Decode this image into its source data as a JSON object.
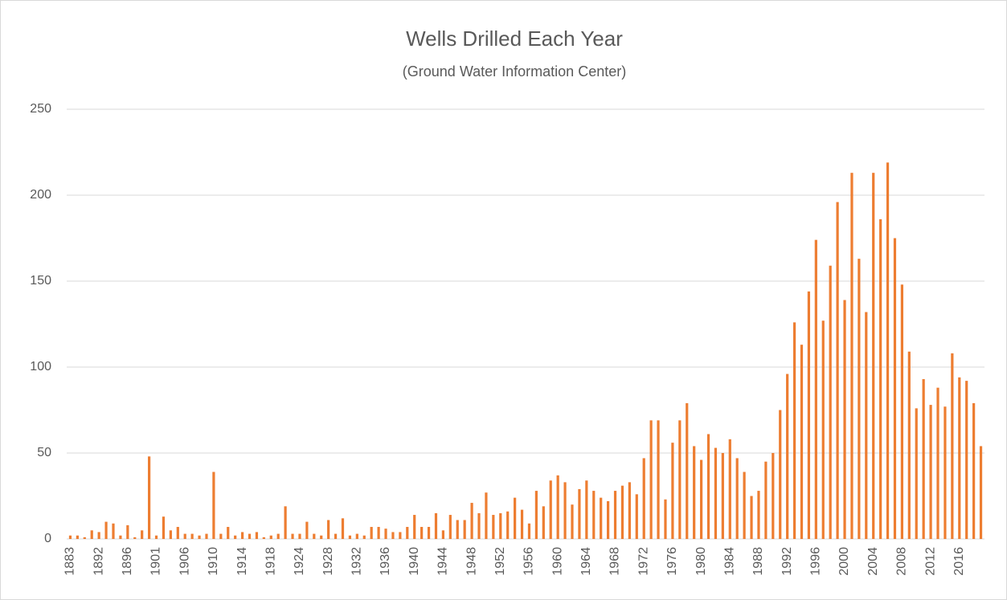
{
  "chart_data": {
    "type": "bar",
    "title": "Wells Drilled Each Year",
    "subtitle": "(Ground Water Information Center)",
    "categories": [
      "1883",
      null,
      null,
      null,
      "1892",
      null,
      null,
      null,
      "1896",
      null,
      null,
      null,
      "1901",
      null,
      null,
      null,
      "1906",
      null,
      null,
      null,
      "1910",
      null,
      null,
      null,
      "1914",
      null,
      null,
      null,
      "1918",
      null,
      null,
      null,
      "1924",
      null,
      null,
      null,
      "1928",
      null,
      null,
      null,
      "1932",
      null,
      null,
      null,
      "1936",
      null,
      null,
      null,
      "1940",
      null,
      null,
      null,
      "1944",
      null,
      null,
      null,
      "1948",
      null,
      null,
      null,
      "1952",
      null,
      null,
      null,
      "1956",
      null,
      null,
      null,
      "1960",
      null,
      null,
      null,
      "1964",
      null,
      null,
      null,
      "1968",
      null,
      null,
      null,
      "1972",
      null,
      null,
      null,
      "1976",
      null,
      null,
      null,
      "1980",
      null,
      null,
      null,
      "1984",
      null,
      null,
      null,
      "1988",
      null,
      null,
      null,
      "1992",
      null,
      null,
      null,
      "1996",
      null,
      null,
      null,
      "2000",
      null,
      null,
      null,
      "2004",
      null,
      null,
      null,
      "2008",
      null,
      null,
      null,
      "2012",
      null,
      null,
      null,
      "2016",
      null,
      null,
      null
    ],
    "values": [
      2,
      2,
      1,
      5,
      4,
      10,
      9,
      2,
      8,
      1,
      5,
      48,
      2,
      13,
      5,
      7,
      3,
      3,
      2,
      3,
      39,
      3,
      7,
      2,
      4,
      3,
      4,
      1,
      2,
      3,
      19,
      3,
      3,
      10,
      3,
      2,
      11,
      3,
      12,
      2,
      3,
      2,
      7,
      7,
      6,
      4,
      4,
      7,
      14,
      7,
      7,
      15,
      5,
      14,
      11,
      11,
      21,
      15,
      27,
      14,
      15,
      16,
      24,
      17,
      9,
      28,
      19,
      34,
      37,
      33,
      20,
      29,
      34,
      28,
      24,
      22,
      28,
      31,
      33,
      26,
      47,
      69,
      69,
      23,
      56,
      69,
      79,
      54,
      46,
      61,
      53,
      50,
      58,
      47,
      39,
      25,
      28,
      45,
      50,
      75,
      96,
      126,
      113,
      144,
      174,
      127,
      159,
      196,
      139,
      213,
      163,
      132,
      213,
      186,
      219,
      175,
      148,
      109,
      76,
      93,
      78,
      88,
      77,
      108,
      94,
      92,
      79,
      54
    ],
    "color": "#ed7d31",
    "ylim": [
      0,
      250
    ],
    "yticks": [
      0,
      50,
      100,
      150,
      200,
      250
    ],
    "grid": true
  }
}
